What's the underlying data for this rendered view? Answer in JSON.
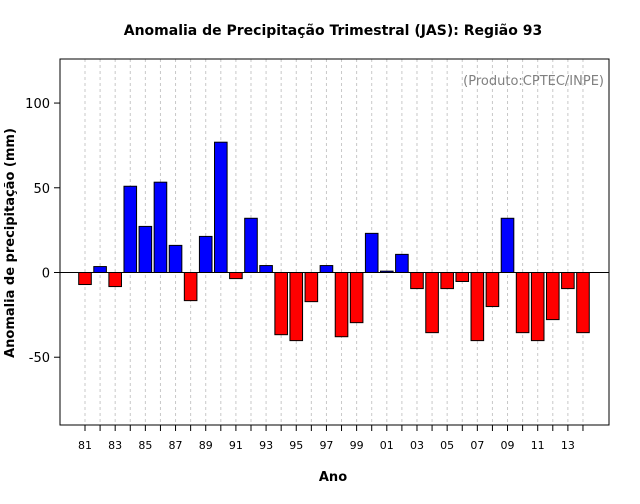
{
  "chart_data": {
    "type": "bar",
    "title": "Anomalia de Precipitação Trimestral (JAS): Região 93",
    "annotation": "(Produto:CPTEC/INPE)",
    "xlabel": "Ano",
    "ylabel": "Anomalia de precipitação (mm)",
    "ylim": [
      -90,
      126
    ],
    "yticks": [
      -50,
      0,
      50,
      100
    ],
    "grid": "vertical dashed",
    "categories": [
      "81",
      "82",
      "83",
      "84",
      "85",
      "86",
      "87",
      "88",
      "89",
      "90",
      "91",
      "92",
      "93",
      "94",
      "95",
      "96",
      "97",
      "98",
      "99",
      "00",
      "01",
      "02",
      "03",
      "04",
      "05",
      "06",
      "07",
      "08",
      "09",
      "10",
      "11",
      "12",
      "13",
      "14"
    ],
    "xtick_labels": [
      "81",
      "83",
      "85",
      "87",
      "89",
      "91",
      "93",
      "95",
      "97",
      "99",
      "01",
      "03",
      "05",
      "07",
      "09",
      "11",
      "13"
    ],
    "values": [
      -7.1,
      3.5,
      -8.3,
      50.9,
      27.2,
      53.3,
      16.0,
      -16.6,
      21.3,
      76.9,
      -3.6,
      32.0,
      4.1,
      -36.7,
      -40.2,
      -17.2,
      4.1,
      -37.9,
      -29.6,
      23.1,
      0.8,
      10.7,
      -9.5,
      -35.5,
      -9.5,
      -5.3,
      -40.2,
      -20.1,
      32.0,
      -35.5,
      -40.2,
      -27.8,
      -9.5,
      -35.5
    ],
    "colors": {
      "positive": "#0000ff",
      "negative": "#ff0000",
      "grid": "#c8c8c8",
      "annotation": "#808080"
    }
  }
}
